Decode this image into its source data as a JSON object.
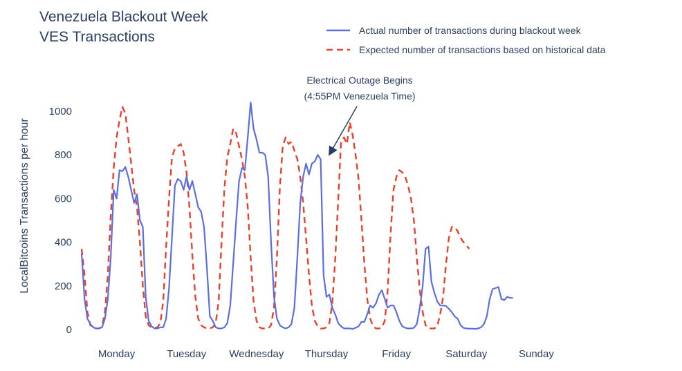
{
  "chart_data": {
    "type": "line",
    "title": [
      "Venezuela Blackout Week",
      "VES Transactions"
    ],
    "xlabel": "",
    "ylabel": "LocalBitcoins Transactions per hour",
    "ylim": [
      0,
      1080
    ],
    "yticks": [
      0,
      200,
      400,
      600,
      800,
      1000
    ],
    "x_unit": "hours since start of Monday",
    "xlim": [
      0,
      168
    ],
    "categories": [
      "Monday",
      "Tuesday",
      "Wednesday",
      "Thursday",
      "Friday",
      "Saturday",
      "Sunday"
    ],
    "category_centers": [
      12,
      36,
      60,
      84,
      108,
      132,
      156
    ],
    "grid": false,
    "legend_position": "top-right",
    "series": [
      {
        "name": "Actual number of transactions during blackout week",
        "color": "#5b6ee1",
        "dash": "solid",
        "points": [
          [
            0,
            350
          ],
          [
            1,
            140
          ],
          [
            2,
            50
          ],
          [
            3,
            25
          ],
          [
            4,
            10
          ],
          [
            5,
            5
          ],
          [
            6,
            5
          ],
          [
            7,
            10
          ],
          [
            8,
            50
          ],
          [
            9,
            140
          ],
          [
            10,
            330
          ],
          [
            11,
            640
          ],
          [
            12,
            600
          ],
          [
            13,
            730
          ],
          [
            14,
            725
          ],
          [
            15,
            745
          ],
          [
            16,
            700
          ],
          [
            17,
            640
          ],
          [
            18,
            580
          ],
          [
            19,
            620
          ],
          [
            20,
            500
          ],
          [
            21,
            470
          ],
          [
            22,
            150
          ],
          [
            23,
            40
          ],
          [
            24,
            15
          ],
          [
            25,
            5
          ],
          [
            26,
            5
          ],
          [
            27,
            10
          ],
          [
            28,
            10
          ],
          [
            29,
            50
          ],
          [
            30,
            190
          ],
          [
            31,
            420
          ],
          [
            32,
            660
          ],
          [
            33,
            690
          ],
          [
            34,
            680
          ],
          [
            35,
            640
          ],
          [
            36,
            700
          ],
          [
            37,
            640
          ],
          [
            38,
            680
          ],
          [
            39,
            620
          ],
          [
            40,
            560
          ],
          [
            41,
            540
          ],
          [
            42,
            470
          ],
          [
            43,
            280
          ],
          [
            44,
            60
          ],
          [
            45,
            40
          ],
          [
            46,
            10
          ],
          [
            47,
            5
          ],
          [
            48,
            5
          ],
          [
            49,
            10
          ],
          [
            50,
            30
          ],
          [
            51,
            110
          ],
          [
            52,
            300
          ],
          [
            53,
            500
          ],
          [
            54,
            680
          ],
          [
            55,
            740
          ],
          [
            56,
            730
          ],
          [
            57,
            880
          ],
          [
            58,
            1040
          ],
          [
            59,
            920
          ],
          [
            60,
            870
          ],
          [
            61,
            810
          ],
          [
            62,
            810
          ],
          [
            63,
            800
          ],
          [
            64,
            700
          ],
          [
            65,
            400
          ],
          [
            66,
            150
          ],
          [
            67,
            50
          ],
          [
            68,
            20
          ],
          [
            69,
            10
          ],
          [
            70,
            5
          ],
          [
            71,
            10
          ],
          [
            72,
            25
          ],
          [
            73,
            100
          ],
          [
            74,
            330
          ],
          [
            75,
            580
          ],
          [
            76,
            700
          ],
          [
            77,
            760
          ],
          [
            78,
            710
          ],
          [
            79,
            760
          ],
          [
            80,
            770
          ],
          [
            81,
            800
          ],
          [
            82,
            780
          ],
          [
            83,
            250
          ],
          [
            84,
            150
          ],
          [
            85,
            160
          ],
          [
            86,
            100
          ],
          [
            87,
            70
          ],
          [
            88,
            30
          ],
          [
            89,
            15
          ],
          [
            90,
            5
          ],
          [
            91,
            5
          ],
          [
            92,
            5
          ],
          [
            93,
            3
          ],
          [
            94,
            8
          ],
          [
            95,
            15
          ],
          [
            96,
            35
          ],
          [
            97,
            35
          ],
          [
            98,
            70
          ],
          [
            99,
            110
          ],
          [
            100,
            100
          ],
          [
            101,
            120
          ],
          [
            102,
            160
          ],
          [
            103,
            180
          ],
          [
            104,
            140
          ],
          [
            105,
            100
          ],
          [
            106,
            110
          ],
          [
            107,
            110
          ],
          [
            108,
            80
          ],
          [
            109,
            40
          ],
          [
            110,
            15
          ],
          [
            111,
            8
          ],
          [
            112,
            5
          ],
          [
            113,
            5
          ],
          [
            114,
            8
          ],
          [
            115,
            25
          ],
          [
            116,
            100
          ],
          [
            117,
            200
          ],
          [
            118,
            370
          ],
          [
            119,
            380
          ],
          [
            120,
            220
          ],
          [
            121,
            170
          ],
          [
            122,
            130
          ],
          [
            123,
            110
          ],
          [
            124,
            110
          ],
          [
            125,
            108
          ],
          [
            126,
            95
          ],
          [
            127,
            80
          ],
          [
            128,
            60
          ],
          [
            129,
            50
          ],
          [
            130,
            20
          ],
          [
            131,
            8
          ],
          [
            132,
            5
          ],
          [
            133,
            4
          ],
          [
            134,
            4
          ],
          [
            135,
            3
          ],
          [
            136,
            5
          ],
          [
            137,
            10
          ],
          [
            138,
            25
          ],
          [
            139,
            60
          ],
          [
            140,
            140
          ],
          [
            141,
            185
          ],
          [
            142,
            190
          ],
          [
            143,
            195
          ],
          [
            144,
            140
          ],
          [
            145,
            135
          ],
          [
            146,
            150
          ],
          [
            147,
            145
          ],
          [
            148,
            145
          ]
        ]
      },
      {
        "name": "Expected number of transactions based on historical data",
        "color": "#e8412b",
        "dash": "dashed",
        "points": [
          [
            0,
            370
          ],
          [
            1,
            250
          ],
          [
            2,
            80
          ],
          [
            3,
            20
          ],
          [
            4,
            8
          ],
          [
            5,
            5
          ],
          [
            6,
            5
          ],
          [
            7,
            15
          ],
          [
            8,
            80
          ],
          [
            9,
            250
          ],
          [
            10,
            520
          ],
          [
            11,
            740
          ],
          [
            12,
            880
          ],
          [
            13,
            960
          ],
          [
            14,
            1020
          ],
          [
            15,
            990
          ],
          [
            16,
            880
          ],
          [
            17,
            760
          ],
          [
            18,
            640
          ],
          [
            19,
            560
          ],
          [
            20,
            400
          ],
          [
            21,
            200
          ],
          [
            22,
            60
          ],
          [
            23,
            20
          ],
          [
            24,
            10
          ],
          [
            25,
            8
          ],
          [
            26,
            10
          ],
          [
            27,
            30
          ],
          [
            28,
            130
          ],
          [
            29,
            380
          ],
          [
            30,
            600
          ],
          [
            31,
            790
          ],
          [
            32,
            830
          ],
          [
            33,
            840
          ],
          [
            34,
            850
          ],
          [
            35,
            810
          ],
          [
            36,
            720
          ],
          [
            37,
            560
          ],
          [
            38,
            340
          ],
          [
            39,
            150
          ],
          [
            40,
            50
          ],
          [
            41,
            20
          ],
          [
            42,
            10
          ],
          [
            43,
            5
          ],
          [
            44,
            5
          ],
          [
            45,
            10
          ],
          [
            46,
            30
          ],
          [
            47,
            130
          ],
          [
            48,
            400
          ],
          [
            49,
            650
          ],
          [
            50,
            790
          ],
          [
            51,
            850
          ],
          [
            52,
            920
          ],
          [
            53,
            900
          ],
          [
            54,
            840
          ],
          [
            55,
            780
          ],
          [
            56,
            700
          ],
          [
            57,
            560
          ],
          [
            58,
            330
          ],
          [
            59,
            130
          ],
          [
            60,
            40
          ],
          [
            61,
            10
          ],
          [
            62,
            5
          ],
          [
            63,
            5
          ],
          [
            64,
            5
          ],
          [
            65,
            20
          ],
          [
            66,
            100
          ],
          [
            67,
            330
          ],
          [
            68,
            650
          ],
          [
            69,
            840
          ],
          [
            70,
            880
          ],
          [
            71,
            850
          ],
          [
            72,
            860
          ],
          [
            73,
            820
          ],
          [
            74,
            780
          ],
          [
            75,
            700
          ],
          [
            76,
            580
          ],
          [
            77,
            420
          ],
          [
            78,
            250
          ],
          [
            79,
            110
          ],
          [
            80,
            40
          ],
          [
            81,
            15
          ],
          [
            82,
            5
          ],
          [
            83,
            5
          ],
          [
            84,
            10
          ],
          [
            85,
            30
          ],
          [
            86,
            120
          ],
          [
            87,
            320
          ],
          [
            88,
            590
          ],
          [
            89,
            860
          ],
          [
            90,
            880
          ],
          [
            91,
            850
          ],
          [
            92,
            950
          ],
          [
            93,
            890
          ],
          [
            94,
            800
          ],
          [
            95,
            690
          ],
          [
            96,
            500
          ],
          [
            97,
            300
          ],
          [
            98,
            140
          ],
          [
            99,
            50
          ],
          [
            100,
            15
          ],
          [
            101,
            5
          ],
          [
            102,
            5
          ],
          [
            103,
            10
          ],
          [
            104,
            40
          ],
          [
            105,
            180
          ],
          [
            106,
            440
          ],
          [
            107,
            640
          ],
          [
            108,
            700
          ],
          [
            109,
            730
          ],
          [
            110,
            720
          ],
          [
            111,
            700
          ],
          [
            112,
            660
          ],
          [
            113,
            600
          ],
          [
            114,
            500
          ],
          [
            115,
            330
          ],
          [
            116,
            180
          ],
          [
            117,
            80
          ],
          [
            118,
            20
          ],
          [
            119,
            5
          ],
          [
            120,
            5
          ],
          [
            121,
            5
          ],
          [
            122,
            15
          ],
          [
            123,
            70
          ],
          [
            124,
            150
          ],
          [
            125,
            300
          ],
          [
            126,
            420
          ],
          [
            127,
            470
          ],
          [
            128,
            470
          ],
          [
            129,
            450
          ],
          [
            130,
            420
          ],
          [
            131,
            400
          ],
          [
            132,
            385
          ],
          [
            133,
            370
          ]
        ]
      }
    ],
    "annotations": [
      {
        "text_lines": [
          "Electrical Outage Begins",
          "(4:55PM Venezuela Time)"
        ],
        "x": 84.9,
        "y": 790
      }
    ]
  }
}
